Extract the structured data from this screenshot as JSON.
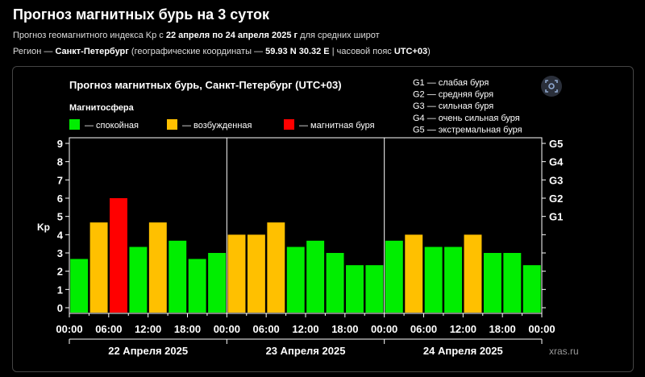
{
  "page": {
    "title": "Прогноз магнитных бурь на 3 суток",
    "subtitle": {
      "p1": "Прогноз геомагнитного индекса Kp с ",
      "dates": "22 апреля по 24 апреля 2025 г",
      "p2": " для средних широт"
    },
    "region": {
      "p1": "Регион — ",
      "city": "Санкт-Петербург",
      "p2": " (географические координаты — ",
      "coords": "59.93 N 30.32 E",
      "p3": " | часовой пояс ",
      "tz": "UTC+03",
      "p4": ")"
    },
    "watermark": "xras.ru"
  },
  "colors": {
    "quiet": "#00ee00",
    "active": "#ffc000",
    "storm": "#ff0000",
    "axis": "#ffffff",
    "frame": "#444444"
  },
  "chart_data": {
    "type": "bar",
    "title": "Прогноз магнитных бурь, Санкт-Петербург (UTC+03)",
    "legend_title": "Магнитосфера",
    "legend": [
      {
        "label": "— спокойная",
        "color": "#00ee00"
      },
      {
        "label": "— возбужденная",
        "color": "#ffc000"
      },
      {
        "label": "— магнитная буря",
        "color": "#ff0000"
      }
    ],
    "storm_scale": [
      "G1 — слабая буря",
      "G2 — средняя буря",
      "G3 — сильная буря",
      "G4 — очень сильная буря",
      "G5 — экстремальная буря"
    ],
    "ylabel": "Kp",
    "ylim": [
      0,
      9
    ],
    "yticks": [
      "0",
      "1",
      "2",
      "3",
      "4",
      "5",
      "6",
      "7",
      "8",
      "9"
    ],
    "right_ticks": [
      {
        "label": "G1",
        "value": 5
      },
      {
        "label": "G2",
        "value": 6
      },
      {
        "label": "G3",
        "value": 7
      },
      {
        "label": "G4",
        "value": 8
      },
      {
        "label": "G5",
        "value": 9
      }
    ],
    "x_tick_labels": [
      "00:00",
      "06:00",
      "12:00",
      "18:00",
      "00:00",
      "06:00",
      "12:00",
      "18:00",
      "00:00",
      "06:00",
      "12:00",
      "18:00",
      "00:00"
    ],
    "days": [
      "22 Апреля 2025",
      "23 Апреля 2025",
      "24 Апреля 2025"
    ],
    "values": [
      2.67,
      4.67,
      6.0,
      3.33,
      4.67,
      3.67,
      2.67,
      3.0,
      4.0,
      4.0,
      4.67,
      3.33,
      3.67,
      3.0,
      2.33,
      2.33,
      3.67,
      4.0,
      3.33,
      3.33,
      4.0,
      3.0,
      3.0,
      2.33
    ],
    "levels": [
      "quiet",
      "active",
      "storm",
      "quiet",
      "active",
      "quiet",
      "quiet",
      "quiet",
      "active",
      "active",
      "active",
      "quiet",
      "quiet",
      "quiet",
      "quiet",
      "quiet",
      "quiet",
      "active",
      "quiet",
      "quiet",
      "active",
      "quiet",
      "quiet",
      "quiet"
    ],
    "grid": "day separators only",
    "legend_position": "top"
  }
}
